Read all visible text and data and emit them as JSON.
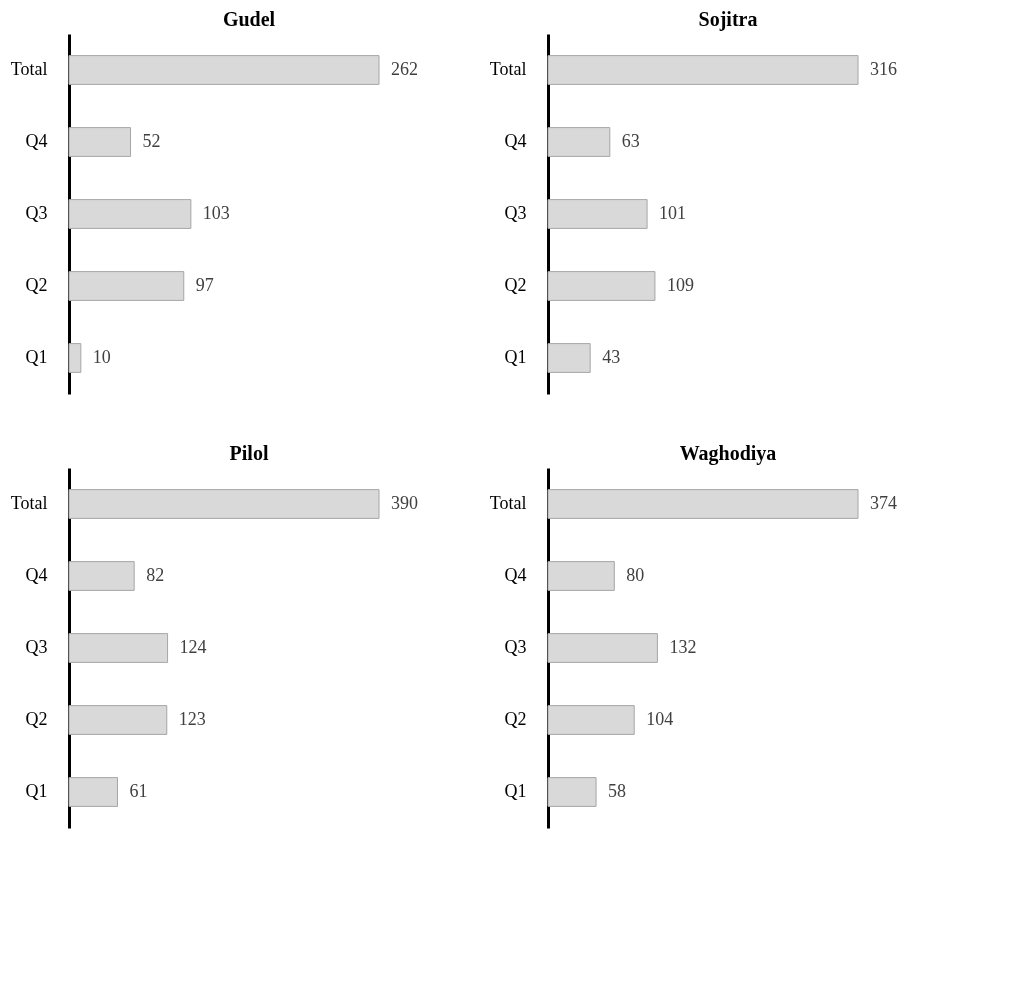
{
  "chart_data": [
    {
      "type": "bar",
      "orientation": "horizontal",
      "title": "Gudel",
      "categories": [
        "Total",
        "Q4",
        "Q3",
        "Q2",
        "Q1"
      ],
      "values": [
        262,
        52,
        103,
        97,
        10
      ],
      "color": "#d9d9d9",
      "data_labels": true
    },
    {
      "type": "bar",
      "orientation": "horizontal",
      "title": "Sojitra",
      "categories": [
        "Total",
        "Q4",
        "Q3",
        "Q2",
        "Q1"
      ],
      "values": [
        316,
        63,
        101,
        109,
        43
      ],
      "color": "#d9d9d9",
      "data_labels": true
    },
    {
      "type": "bar",
      "orientation": "horizontal",
      "title": "Pilol",
      "categories": [
        "Total",
        "Q4",
        "Q3",
        "Q2",
        "Q1"
      ],
      "values": [
        390,
        82,
        124,
        123,
        61
      ],
      "color": "#d9d9d9",
      "data_labels": true
    },
    {
      "type": "bar",
      "orientation": "horizontal",
      "title": "Waghodiya",
      "categories": [
        "Total",
        "Q4",
        "Q3",
        "Q2",
        "Q1"
      ],
      "values": [
        374,
        80,
        132,
        104,
        58
      ],
      "color": "#d9d9d9",
      "data_labels": true
    }
  ]
}
